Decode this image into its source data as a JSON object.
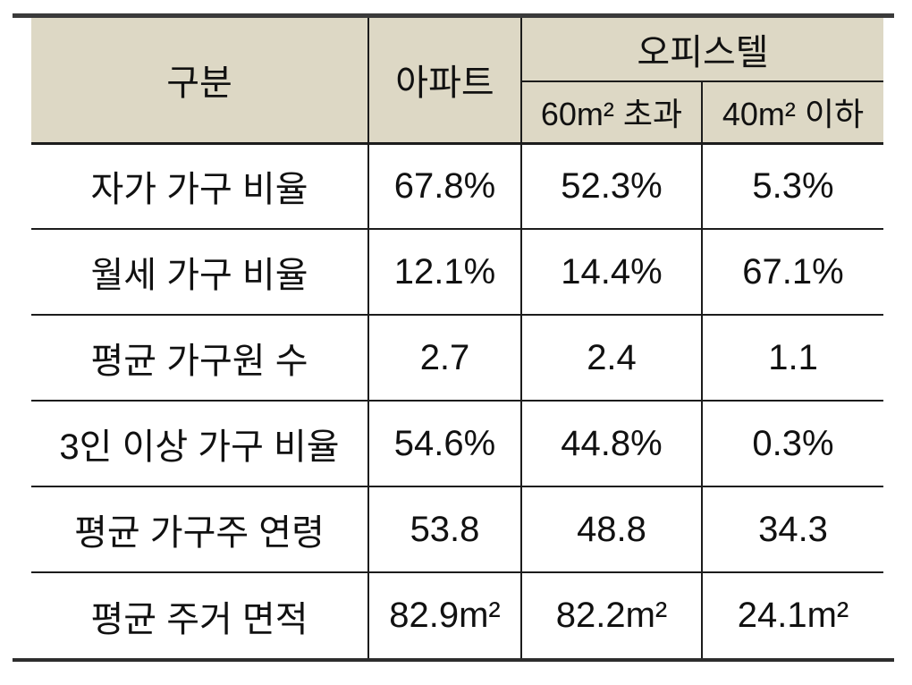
{
  "table": {
    "header": {
      "col_category": "구분",
      "col_apartment": "아파트",
      "col_officetel": "오피스텔",
      "sub_over60": "60m² 초과",
      "sub_under40": "40m² 이하"
    },
    "rows": [
      {
        "label": "자가 가구 비율",
        "apartment": "67.8%",
        "officetel_over60": "52.3%",
        "officetel_under40": "5.3%"
      },
      {
        "label": "월세 가구 비율",
        "apartment": "12.1%",
        "officetel_over60": "14.4%",
        "officetel_under40": "67.1%"
      },
      {
        "label": "평균 가구원 수",
        "apartment": "2.7",
        "officetel_over60": "2.4",
        "officetel_under40": "1.1"
      },
      {
        "label": "3인 이상 가구 비율",
        "apartment": "54.6%",
        "officetel_over60": "44.8%",
        "officetel_under40": "0.3%"
      },
      {
        "label": "평균 가구주 연령",
        "apartment": "53.8",
        "officetel_over60": "48.8",
        "officetel_under40": "34.3"
      },
      {
        "label": "평균 주거 면적",
        "apartment": "82.9m²",
        "officetel_over60": "82.2m²",
        "officetel_under40": "24.1m²"
      }
    ]
  },
  "colors": {
    "header_background": "#ddd8c5",
    "border_thick": "#3a3a3a",
    "border_thin": "#1c1c1c",
    "text": "#111111",
    "page_background": "#ffffff"
  }
}
